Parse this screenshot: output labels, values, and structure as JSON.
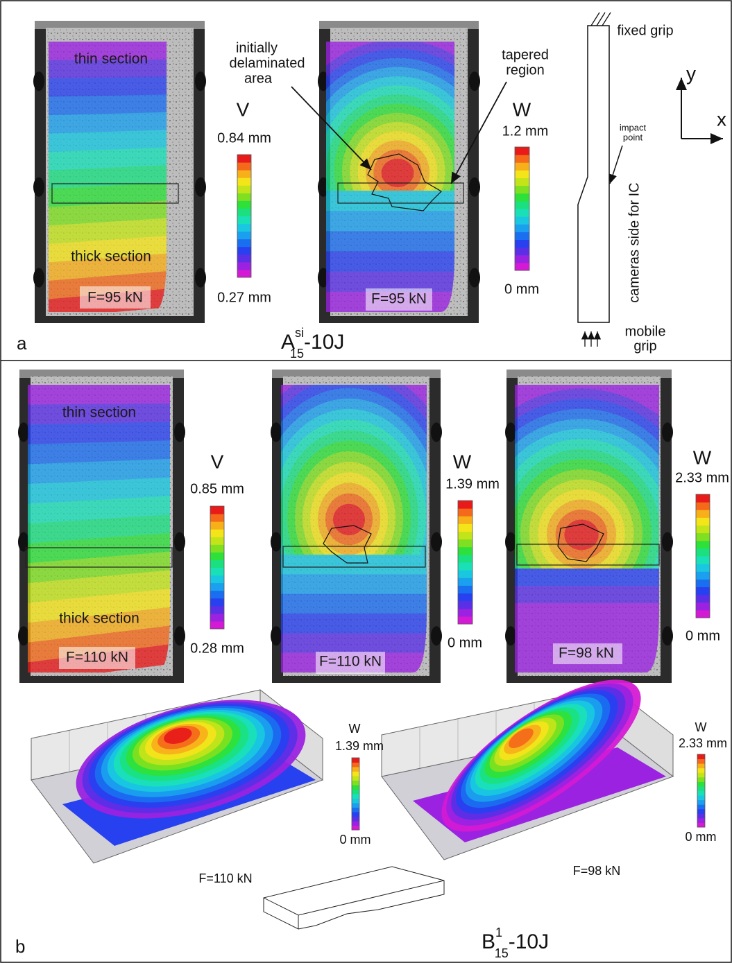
{
  "panel_a": {
    "label": "a",
    "caption": {
      "main": "A",
      "sup": "si",
      "sub": "15",
      "suffix": "-10J"
    },
    "image_v": {
      "top": "thin section",
      "bottom": "thick section",
      "force": "F=95 kN"
    },
    "scale_v": {
      "symbol": "V",
      "max": "0.84 mm",
      "min": "0.27 mm"
    },
    "image_w": {
      "force": "F=95 kN"
    },
    "scale_w": {
      "symbol": "W",
      "max": "1.2 mm",
      "min": "0 mm"
    },
    "delaminated_note": [
      "initially",
      "delaminated",
      "area"
    ],
    "tapered_note": [
      "tapered",
      "region"
    ],
    "schematic": {
      "top": "fixed grip",
      "impact": [
        "impact",
        "point"
      ],
      "side": "cameras side for IC",
      "bottom": [
        "mobile",
        "grip"
      ],
      "axis_y": "y",
      "axis_x": "x"
    }
  },
  "panel_b": {
    "label": "b",
    "caption": {
      "main": "B",
      "sup": "1",
      "sub": "15",
      "suffix": "-10J"
    },
    "image_v": {
      "top": "thin section",
      "bottom": "thick section",
      "force": "F=110 kN"
    },
    "scale_v": {
      "symbol": "V",
      "max": "0.85 mm",
      "min": "0.28 mm"
    },
    "image_w1": {
      "force": "F=110 kN"
    },
    "scale_w1": {
      "symbol": "W",
      "max": "1.39 mm",
      "min": "0 mm"
    },
    "image_w2": {
      "force": "F=98 kN"
    },
    "scale_w2": {
      "symbol": "W",
      "max": "2.33 mm",
      "min": "0 mm"
    },
    "surface_1": {
      "force": "F=110 kN",
      "scale": {
        "symbol": "W",
        "max": "1.39 mm",
        "min": "0 mm"
      }
    },
    "surface_2": {
      "force": "F=98 kN",
      "scale": {
        "symbol": "W",
        "max": "2.33 mm",
        "min": "0 mm"
      }
    }
  }
}
